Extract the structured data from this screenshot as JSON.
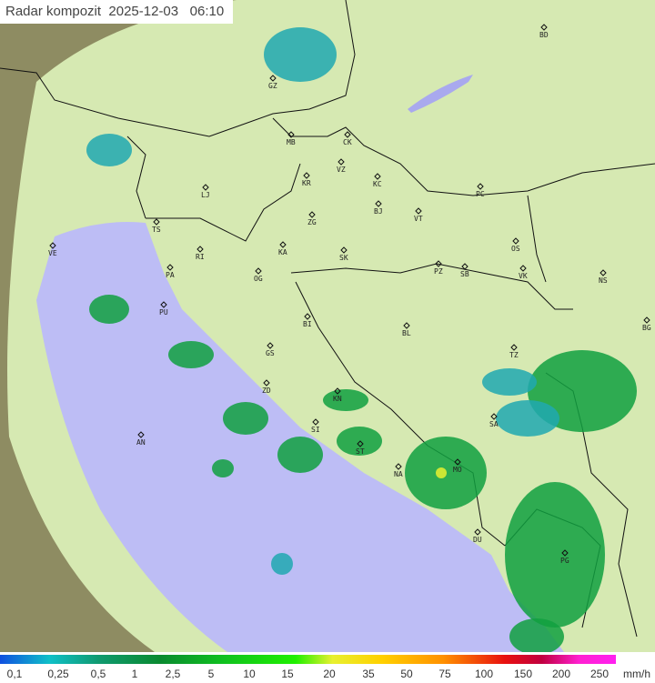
{
  "header": {
    "title": "Radar kompozit",
    "date": "2025-12-03",
    "time": "06:10"
  },
  "legend": {
    "unit": "mm/h",
    "labels": [
      "0,1",
      "0,25",
      "0,5",
      "1",
      "2,5",
      "5",
      "10",
      "15",
      "20",
      "35",
      "50",
      "75",
      "100",
      "150",
      "200",
      "250"
    ]
  },
  "cities": [
    "BD",
    "GZ",
    "MB",
    "CK",
    "VZ",
    "KR",
    "KC",
    "LJ",
    "PC",
    "BJ",
    "TS",
    "ZG",
    "VT",
    "VE",
    "RI",
    "KA",
    "SK",
    "OS",
    "PA",
    "OG",
    "PZ",
    "SB",
    "VK",
    "NS",
    "PU",
    "BI",
    "BL",
    "BG",
    "GS",
    "TZ",
    "ZD",
    "KN",
    "SA",
    "AN",
    "SI",
    "ST",
    "MO",
    "NA",
    "DU",
    "PG"
  ],
  "colors": {
    "land": "#c8c890",
    "coverage": "#d8ecb4",
    "sea": "#bcbcf4",
    "outside": "#8a8a60",
    "rain_light": "#20a8b0",
    "rain_mid": "#10a040",
    "rain_heavy": "#30d020",
    "rain_peak": "#e8f030"
  }
}
